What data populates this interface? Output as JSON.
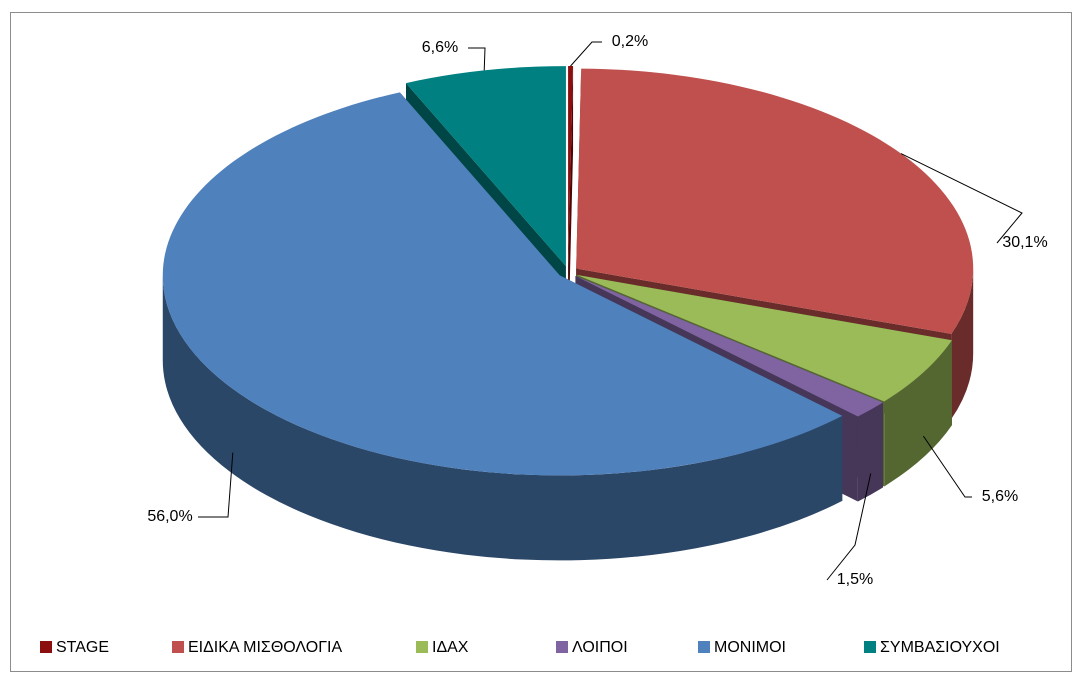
{
  "chart_data": {
    "type": "pie3d",
    "categories": [
      "STAGE",
      "ΕΙΔΙΚΑ ΜΙΣΘΟΛΟΓΙΑ",
      "ΙΔΑΧ",
      "ΛΟΙΠΟΙ",
      "ΜΟΝΙΜΟΙ",
      "ΣΥΜΒΑΣΙΟΥΧΟΙ"
    ],
    "values": [
      0.2,
      30.1,
      5.6,
      1.5,
      56.0,
      6.6
    ],
    "value_labels": [
      "0,2%",
      "30,1%",
      "5,6%",
      "1,5%",
      "56,0%",
      "6,6%"
    ],
    "colors": [
      "#8b0f0f",
      "#c0504d",
      "#9bbb59",
      "#8064a2",
      "#4f81bd",
      "#008080"
    ],
    "legend": "bottom"
  }
}
